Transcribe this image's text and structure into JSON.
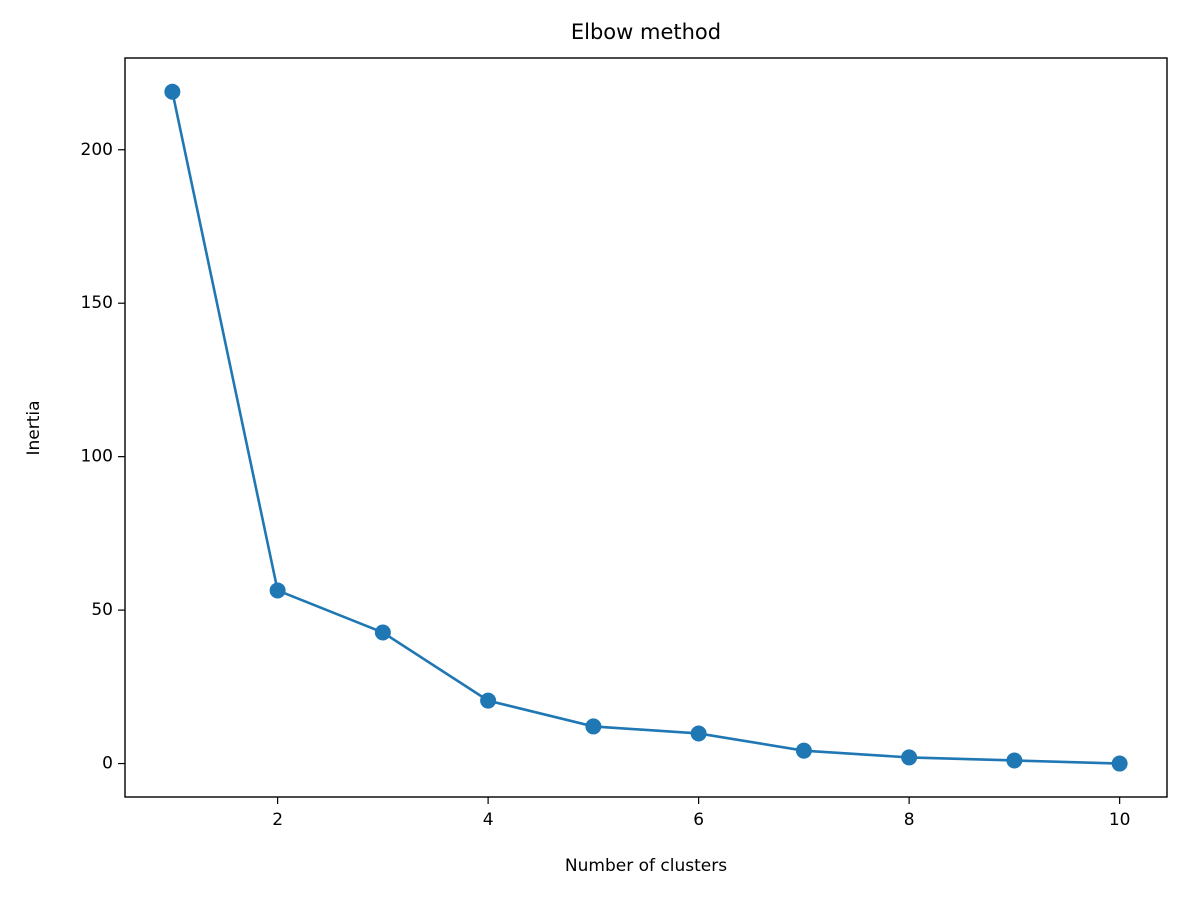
{
  "chart_data": {
    "type": "line",
    "title": "Elbow method",
    "x_label": "Number of clusters",
    "y_label": "Inertia",
    "x": [
      1,
      2,
      3,
      4,
      5,
      6,
      7,
      8,
      9,
      10
    ],
    "series": [
      {
        "color": "#1f77b4",
        "values": [
          218.9,
          56.4,
          42.7,
          20.5,
          12.1,
          9.8,
          4.2,
          2.0,
          1.0,
          0
        ]
      }
    ],
    "xlim": [
      0.55,
      10.45
    ],
    "xticks": [
      2,
      4,
      6,
      8,
      10
    ],
    "ylim": [
      -10.9,
      229.9
    ],
    "yticks": [
      0,
      50,
      100,
      150,
      200
    ],
    "grid": false,
    "markers": true
  }
}
